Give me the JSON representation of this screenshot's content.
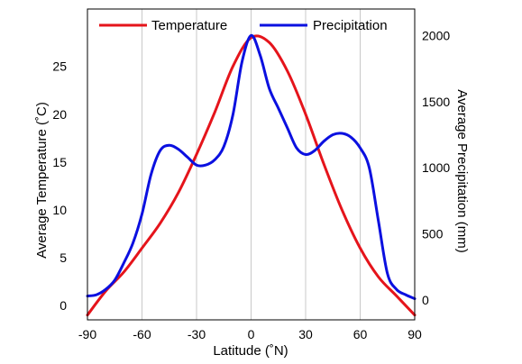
{
  "chart_data": {
    "type": "line",
    "title": "",
    "xlabel": "Latitude (˚N)",
    "ylabel_left": "Average Temperature (˚C)",
    "ylabel_right": "Average Precipitation (mm)",
    "xlim": [
      -90,
      90
    ],
    "ylim_left": [
      -1.5,
      31
    ],
    "ylim_right": [
      -150,
      2200
    ],
    "x_ticks": [
      "-90",
      "-60",
      "-30",
      "0",
      "30",
      "60",
      "90"
    ],
    "y_ticks_left": [
      "0",
      "5",
      "10",
      "15",
      "20",
      "25"
    ],
    "y_ticks_right": [
      "0",
      "500",
      "1000",
      "1500",
      "2000"
    ],
    "grid": "vertical",
    "legend_position": "top",
    "series": [
      {
        "name": "Temperature",
        "axis": "left",
        "color": "#e5141b",
        "x": [
          -90,
          -80,
          -70,
          -60,
          -50,
          -40,
          -30,
          -20,
          -10,
          0,
          10,
          20,
          30,
          40,
          50,
          60,
          70,
          80,
          90
        ],
        "y": [
          -1,
          1.5,
          3.5,
          6,
          8.6,
          11.8,
          15.8,
          20.2,
          25,
          28,
          27.5,
          24.5,
          20,
          14.8,
          10,
          6,
          3,
          1,
          -1
        ]
      },
      {
        "name": "Precipitation",
        "axis": "right",
        "color": "#0b10e0",
        "x": [
          -90,
          -85,
          -80,
          -75,
          -70,
          -65,
          -60,
          -55,
          -50,
          -45,
          -40,
          -35,
          -30,
          -25,
          -20,
          -15,
          -10,
          -5,
          0,
          5,
          10,
          15,
          20,
          25,
          30,
          35,
          40,
          45,
          50,
          55,
          60,
          65,
          70,
          75,
          80,
          85,
          90
        ],
        "y": [
          30,
          40,
          80,
          150,
          280,
          430,
          650,
          950,
          1130,
          1170,
          1140,
          1080,
          1020,
          1020,
          1060,
          1160,
          1400,
          1800,
          2000,
          1850,
          1600,
          1450,
          1300,
          1150,
          1100,
          1130,
          1200,
          1250,
          1260,
          1230,
          1150,
          1000,
          600,
          200,
          80,
          40,
          10
        ]
      }
    ]
  }
}
